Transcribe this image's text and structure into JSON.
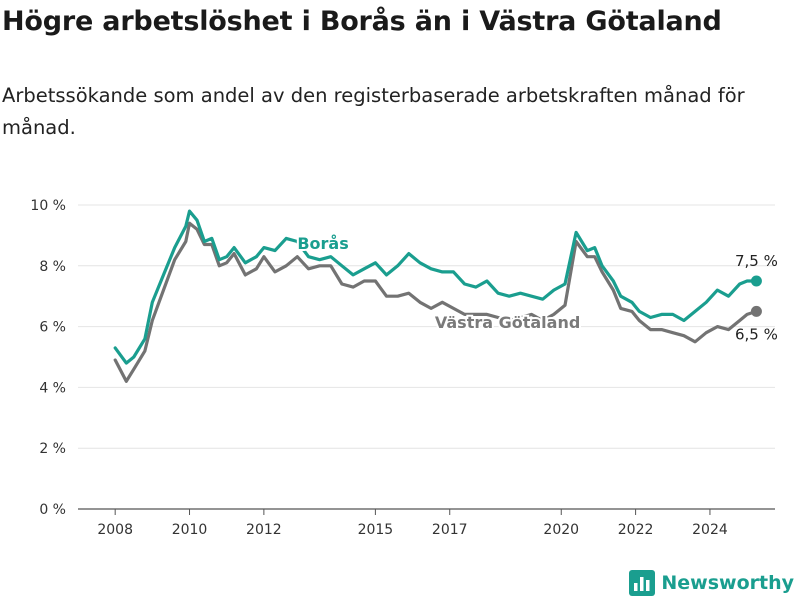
{
  "title": "Högre arbetslöshet i Borås än i Västra Götaland",
  "subtitle": "Arbetssökande som andel av den registerbaserade arbetskraften månad för månad.",
  "brand": {
    "name": "Newsworthy",
    "icon": "bar-chart-logo-icon",
    "color": "#1a9e8f"
  },
  "chart_data": {
    "type": "line",
    "x_ticks": [
      2008,
      2010,
      2012,
      2015,
      2017,
      2020,
      2022,
      2024
    ],
    "xlim": [
      2007.0,
      2025.75
    ],
    "y_ticks": [
      "0 %",
      "2 %",
      "4 %",
      "6 %",
      "8 %",
      "10 %"
    ],
    "y_tick_values": [
      0,
      2,
      4,
      6,
      8,
      10
    ],
    "ylim": [
      0,
      10
    ],
    "grid": "horizontal",
    "series": [
      {
        "name": "Borås",
        "color": "#1a9e8f",
        "end_label": "7,5 %",
        "points": [
          [
            2008.0,
            5.3
          ],
          [
            2008.3,
            4.8
          ],
          [
            2008.5,
            5.0
          ],
          [
            2008.8,
            5.6
          ],
          [
            2009.0,
            6.8
          ],
          [
            2009.3,
            7.7
          ],
          [
            2009.6,
            8.6
          ],
          [
            2009.9,
            9.3
          ],
          [
            2010.0,
            9.8
          ],
          [
            2010.2,
            9.5
          ],
          [
            2010.4,
            8.8
          ],
          [
            2010.6,
            8.9
          ],
          [
            2010.8,
            8.2
          ],
          [
            2011.0,
            8.3
          ],
          [
            2011.2,
            8.6
          ],
          [
            2011.5,
            8.1
          ],
          [
            2011.8,
            8.3
          ],
          [
            2012.0,
            8.6
          ],
          [
            2012.3,
            8.5
          ],
          [
            2012.6,
            8.9
          ],
          [
            2012.9,
            8.8
          ],
          [
            2013.2,
            8.3
          ],
          [
            2013.5,
            8.2
          ],
          [
            2013.8,
            8.3
          ],
          [
            2014.1,
            8.0
          ],
          [
            2014.4,
            7.7
          ],
          [
            2014.7,
            7.9
          ],
          [
            2015.0,
            8.1
          ],
          [
            2015.3,
            7.7
          ],
          [
            2015.6,
            8.0
          ],
          [
            2015.9,
            8.4
          ],
          [
            2016.2,
            8.1
          ],
          [
            2016.5,
            7.9
          ],
          [
            2016.8,
            7.8
          ],
          [
            2017.1,
            7.8
          ],
          [
            2017.4,
            7.4
          ],
          [
            2017.7,
            7.3
          ],
          [
            2018.0,
            7.5
          ],
          [
            2018.3,
            7.1
          ],
          [
            2018.6,
            7.0
          ],
          [
            2018.9,
            7.1
          ],
          [
            2019.2,
            7.0
          ],
          [
            2019.5,
            6.9
          ],
          [
            2019.8,
            7.2
          ],
          [
            2020.1,
            7.4
          ],
          [
            2020.4,
            9.1
          ],
          [
            2020.7,
            8.5
          ],
          [
            2020.9,
            8.6
          ],
          [
            2021.1,
            8.0
          ],
          [
            2021.4,
            7.5
          ],
          [
            2021.6,
            7.0
          ],
          [
            2021.9,
            6.8
          ],
          [
            2022.1,
            6.5
          ],
          [
            2022.4,
            6.3
          ],
          [
            2022.7,
            6.4
          ],
          [
            2023.0,
            6.4
          ],
          [
            2023.3,
            6.2
          ],
          [
            2023.6,
            6.5
          ],
          [
            2023.9,
            6.8
          ],
          [
            2024.2,
            7.2
          ],
          [
            2024.5,
            7.0
          ],
          [
            2024.8,
            7.4
          ],
          [
            2025.0,
            7.5
          ],
          [
            2025.25,
            7.5
          ]
        ]
      },
      {
        "name": "Västra Götaland",
        "color": "#737373",
        "end_label": "6,5 %",
        "points": [
          [
            2008.0,
            4.9
          ],
          [
            2008.3,
            4.2
          ],
          [
            2008.5,
            4.6
          ],
          [
            2008.8,
            5.2
          ],
          [
            2009.0,
            6.2
          ],
          [
            2009.3,
            7.2
          ],
          [
            2009.6,
            8.2
          ],
          [
            2009.9,
            8.8
          ],
          [
            2010.0,
            9.4
          ],
          [
            2010.2,
            9.2
          ],
          [
            2010.4,
            8.7
          ],
          [
            2010.6,
            8.7
          ],
          [
            2010.8,
            8.0
          ],
          [
            2011.0,
            8.1
          ],
          [
            2011.2,
            8.4
          ],
          [
            2011.5,
            7.7
          ],
          [
            2011.8,
            7.9
          ],
          [
            2012.0,
            8.3
          ],
          [
            2012.3,
            7.8
          ],
          [
            2012.6,
            8.0
          ],
          [
            2012.9,
            8.3
          ],
          [
            2013.2,
            7.9
          ],
          [
            2013.5,
            8.0
          ],
          [
            2013.8,
            8.0
          ],
          [
            2014.1,
            7.4
          ],
          [
            2014.4,
            7.3
          ],
          [
            2014.7,
            7.5
          ],
          [
            2015.0,
            7.5
          ],
          [
            2015.3,
            7.0
          ],
          [
            2015.6,
            7.0
          ],
          [
            2015.9,
            7.1
          ],
          [
            2016.2,
            6.8
          ],
          [
            2016.5,
            6.6
          ],
          [
            2016.8,
            6.8
          ],
          [
            2017.1,
            6.6
          ],
          [
            2017.4,
            6.4
          ],
          [
            2017.7,
            6.4
          ],
          [
            2018.0,
            6.4
          ],
          [
            2018.3,
            6.3
          ],
          [
            2018.6,
            6.2
          ],
          [
            2018.9,
            6.3
          ],
          [
            2019.2,
            6.4
          ],
          [
            2019.5,
            6.2
          ],
          [
            2019.8,
            6.4
          ],
          [
            2020.1,
            6.7
          ],
          [
            2020.4,
            8.8
          ],
          [
            2020.7,
            8.3
          ],
          [
            2020.9,
            8.3
          ],
          [
            2021.1,
            7.8
          ],
          [
            2021.4,
            7.2
          ],
          [
            2021.6,
            6.6
          ],
          [
            2021.9,
            6.5
          ],
          [
            2022.1,
            6.2
          ],
          [
            2022.4,
            5.9
          ],
          [
            2022.7,
            5.9
          ],
          [
            2023.0,
            5.8
          ],
          [
            2023.3,
            5.7
          ],
          [
            2023.6,
            5.5
          ],
          [
            2023.9,
            5.8
          ],
          [
            2024.2,
            6.0
          ],
          [
            2024.5,
            5.9
          ],
          [
            2024.8,
            6.2
          ],
          [
            2025.0,
            6.4
          ],
          [
            2025.25,
            6.5
          ]
        ]
      }
    ]
  }
}
